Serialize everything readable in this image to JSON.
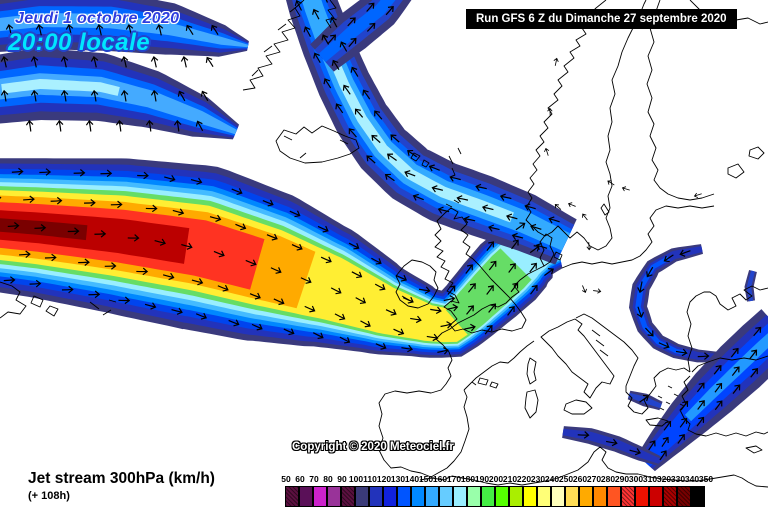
{
  "header": {
    "date_line": "Jeudi 1 octobre 2020",
    "time_line": "20:00 locale",
    "run_info": "Run GFS 6 Z du Dimanche 27 septembre 2020"
  },
  "map": {
    "copyright": "Copyright © 2020 Meteociel.fr"
  },
  "footer": {
    "title": "Jet stream 300hPa (km/h)",
    "forecast_step": "(+ 108h)"
  },
  "legend": {
    "unit": "km/h",
    "tick_values": [
      50,
      60,
      70,
      80,
      90,
      100,
      110,
      120,
      130,
      140,
      150,
      160,
      170,
      180,
      190,
      200,
      210,
      220,
      230,
      240,
      250,
      260,
      270,
      280,
      290,
      300,
      310,
      320,
      330,
      340,
      350
    ],
    "cell_colors": [
      "#5c1040",
      "#5a1058",
      "#cc22cc",
      "#993399",
      "#5c1040",
      "#3a3a78",
      "#2233bb",
      "#1122dd",
      "#0055ff",
      "#0088ff",
      "#33aaff",
      "#66ccff",
      "#99eeff",
      "#99ffaa",
      "#44ee44",
      "#55ff00",
      "#aaee00",
      "#ffff00",
      "#ffff77",
      "#ffffbb",
      "#ffdd55",
      "#ffaa00",
      "#ff8800",
      "#ff5522",
      "#ff3333",
      "#ee1100",
      "#cc0000",
      "#aa0000",
      "#770000",
      "#000000"
    ],
    "patterned_cells": [
      0,
      4,
      24,
      27,
      28
    ]
  },
  "colors": {
    "date_text": "#2e3edf",
    "time_text": "#00e6ff",
    "run_bg": "#000000",
    "run_text": "#ffffff",
    "band_edge": "#3a3a7d"
  }
}
